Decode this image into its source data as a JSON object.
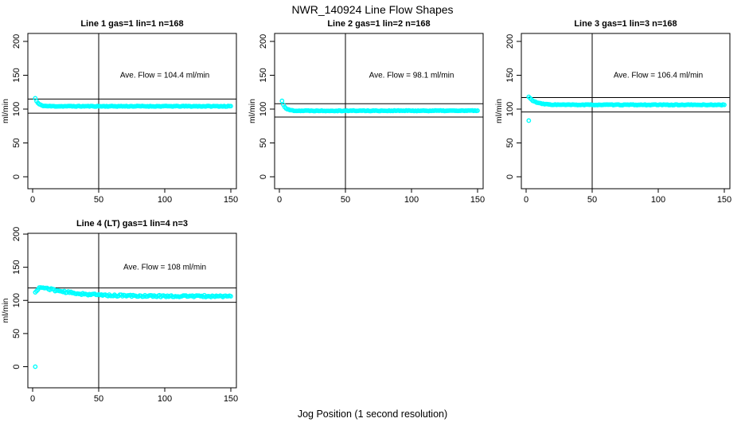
{
  "figure": {
    "title": "NWR_140924  Line Flow Shapes",
    "xlabel": "Jog Position (1 second resolution)",
    "background_color": "#ffffff",
    "point_color": "#00ffff",
    "line_color": "#000000"
  },
  "chart_data": {
    "type": "scatter",
    "title": "NWR_140924  Line Flow Shapes",
    "xlabel": "Jog Position (1 second resolution)",
    "ylabel": "ml/min",
    "xlim": [
      0,
      150
    ],
    "ylim": [
      0,
      200
    ],
    "xticks": [
      0,
      50,
      100,
      150
    ],
    "yticks": [
      0,
      50,
      100,
      150,
      200
    ],
    "marker": "open-circle",
    "marker_color": "#00ffff",
    "grid": false,
    "panels": [
      {
        "title": "Line 1 gas=1 lin=1 n=168",
        "annotation": "Ave. Flow =  104.4  ml/min",
        "ave_flow": 104.4,
        "n": 168,
        "vline_x": 50,
        "ref_lines": [
          114.8,
          94.0
        ],
        "series": {
          "x_start": 2,
          "x_end": 150,
          "step": 1,
          "start": 116,
          "settle": 104.2,
          "tau": 2.2,
          "rise": 0,
          "noise": 0.5,
          "seed": 11
        },
        "outliers": []
      },
      {
        "title": "Line 2 gas=1 lin=2 n=168",
        "annotation": "Ave. Flow =  98.1  ml/min",
        "ave_flow": 98.1,
        "n": 168,
        "vline_x": 50,
        "ref_lines": [
          107.9,
          88.3
        ],
        "series": {
          "x_start": 2,
          "x_end": 150,
          "step": 1,
          "start": 112,
          "settle": 97.6,
          "tau": 2.2,
          "rise": 0,
          "noise": 0.5,
          "seed": 22
        },
        "outliers": []
      },
      {
        "title": "Line 3 gas=1 lin=3 n=168",
        "annotation": "Ave. Flow =  106.4  ml/min",
        "ave_flow": 106.4,
        "n": 168,
        "vline_x": 50,
        "ref_lines": [
          117.0,
          95.8
        ],
        "series": {
          "x_start": 2,
          "x_end": 150,
          "step": 1,
          "start": 118,
          "settle": 106.3,
          "tau": 5,
          "rise": 0,
          "noise": 0.5,
          "seed": 33
        },
        "outliers": [
          [
            2,
            83
          ]
        ]
      },
      {
        "title": "Line 4 (LT) gas=1 lin=4 n=3",
        "annotation": "Ave. Flow =  108  ml/min",
        "ave_flow": 108,
        "n": 3,
        "vline_x": 50,
        "ref_lines": [
          118.8,
          97.2
        ],
        "series": {
          "x_start": 2,
          "x_end": 150,
          "step": 1,
          "start": 124.3,
          "settle": 106.3,
          "tau": 22,
          "rise": 2.5,
          "noise": 1.4,
          "seed": 44
        },
        "outliers": [
          [
            2,
            0
          ]
        ]
      }
    ]
  }
}
